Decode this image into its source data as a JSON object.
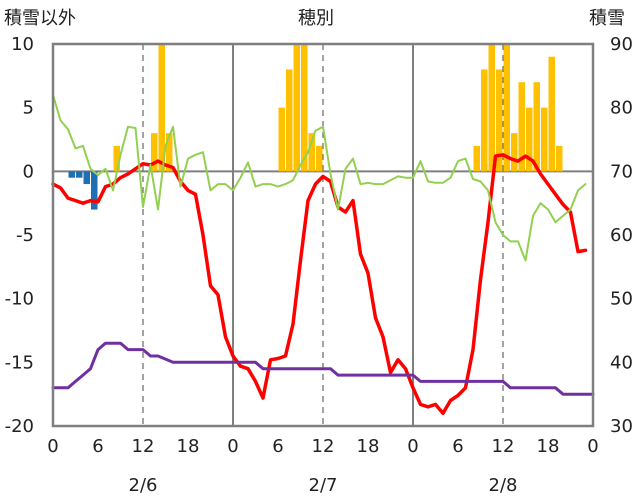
{
  "chart_data": {
    "type": "bar",
    "title": "",
    "left_axis": {
      "label": "積雪以外",
      "min": -20,
      "max": 10,
      "ticks": [
        "10",
        "5",
        "0",
        "-5",
        "-10",
        "-15",
        "-20"
      ]
    },
    "right_axis": {
      "label": "積雪",
      "min": 30,
      "max": 90,
      "ticks": [
        "90",
        "80",
        "70",
        "60",
        "50",
        "40",
        "30"
      ]
    },
    "top_label": "穂別",
    "x_tick_labels": [
      "0",
      "6",
      "12",
      "18",
      "0",
      "6",
      "12",
      "18",
      "0",
      "6",
      "12",
      "18",
      "0"
    ],
    "day_labels": [
      "2/6",
      "2/7",
      "2/8"
    ],
    "x_unit": "hours since 2/6 00:00",
    "x_range": [
      0,
      72
    ],
    "grid": "dashed vertical lines at 12h, solid lines at day boundaries",
    "series": [
      {
        "name": "",
        "kind": "bar",
        "axis": "left",
        "color": "#FFC000",
        "x": [
          9,
          14,
          15,
          16,
          31,
          32,
          33,
          34,
          35,
          36,
          57,
          58,
          59,
          60,
          61,
          62,
          63,
          64,
          65,
          66,
          67,
          68
        ],
        "y": [
          2,
          3,
          10,
          3,
          5,
          8,
          10,
          10,
          3,
          2,
          2,
          8,
          10,
          8,
          10,
          3,
          7,
          5,
          7,
          5,
          9,
          2
        ]
      },
      {
        "name": "",
        "kind": "bar",
        "axis": "left",
        "color": "#1F6FB2",
        "x": [
          3,
          4,
          5,
          6
        ],
        "y": [
          -0.5,
          -0.5,
          -1,
          -3
        ]
      },
      {
        "name": "",
        "kind": "line",
        "axis": "left",
        "color": "#FF0000",
        "width": 3.5,
        "x": [
          0,
          1,
          2,
          3,
          4,
          5,
          6,
          7,
          8,
          9,
          10,
          11,
          12,
          13,
          14,
          15,
          16,
          17,
          18,
          19,
          20,
          21,
          22,
          23,
          24,
          25,
          26,
          27,
          28,
          29,
          30,
          31,
          32,
          33,
          34,
          35,
          36,
          37,
          38,
          39,
          40,
          41,
          42,
          43,
          44,
          45,
          46,
          47,
          48,
          49,
          50,
          51,
          52,
          53,
          54,
          55,
          56,
          57,
          58,
          59,
          60,
          61,
          62,
          63,
          64,
          65,
          66,
          67,
          68,
          69,
          70,
          71
        ],
        "y": [
          -1,
          -1.3,
          -2.1,
          -2.3,
          -2.5,
          -2.3,
          -2.4,
          -1.2,
          -1.0,
          -0.5,
          -0.2,
          0.2,
          0.6,
          0.5,
          0.8,
          0.5,
          0.3,
          -0.8,
          -1.5,
          -1.8,
          -5,
          -9,
          -9.7,
          -13,
          -14.5,
          -15.3,
          -15.5,
          -16.5,
          -17.8,
          -14.8,
          -14.7,
          -14.5,
          -12,
          -7,
          -2.3,
          -1,
          -0.4,
          -0.8,
          -2.8,
          -3.2,
          -2.3,
          -6.5,
          -8,
          -11.5,
          -13,
          -15.8,
          -14.8,
          -15.5,
          -17,
          -18.3,
          -18.5,
          -18.3,
          -19,
          -18,
          -17.6,
          -17,
          -14,
          -8.5,
          -4,
          1.2,
          1.3,
          1.0,
          0.8,
          1.2,
          0.8,
          -0.2,
          -1,
          -1.8,
          -2.6,
          -3.2,
          -6.3,
          -6.2
        ]
      },
      {
        "name": "",
        "kind": "line",
        "axis": "left",
        "color": "#92D050",
        "width": 2,
        "x": [
          0,
          1,
          2,
          3,
          4,
          5,
          6,
          7,
          8,
          9,
          10,
          11,
          12,
          13,
          14,
          15,
          16,
          17,
          18,
          19,
          20,
          21,
          22,
          23,
          24,
          25,
          26,
          27,
          28,
          29,
          30,
          31,
          32,
          33,
          34,
          35,
          36,
          37,
          38,
          39,
          40,
          41,
          42,
          43,
          44,
          45,
          46,
          47,
          48,
          49,
          50,
          51,
          52,
          53,
          54,
          55,
          56,
          57,
          58,
          59,
          60,
          61,
          62,
          63,
          64,
          65,
          66,
          67,
          68,
          69,
          70,
          71
        ],
        "y": [
          6,
          4,
          3.3,
          1.8,
          2,
          0.2,
          -0.3,
          0.2,
          -1.5,
          1.3,
          3.5,
          3.4,
          -2.8,
          0.5,
          -3,
          2,
          3.5,
          -1.2,
          1,
          1.3,
          1.5,
          -1.5,
          -1,
          -1,
          -1.5,
          -0.5,
          0.7,
          -1.2,
          -1,
          -1,
          -1.2,
          -1,
          -0.7,
          0.5,
          1.5,
          3.2,
          3.5,
          -0.2,
          -3,
          0.2,
          1,
          -1,
          -0.9,
          -1,
          -1,
          -0.7,
          -0.4,
          -0.5,
          -0.5,
          0.8,
          -0.8,
          -0.9,
          -0.9,
          -0.5,
          0.8,
          1,
          -0.6,
          -0.8,
          -1.5,
          -4,
          -5,
          -5.5,
          -5.5,
          -7,
          -3.5,
          -2.5,
          -3,
          -4,
          -3.5,
          -3,
          -1.5,
          -1
        ]
      },
      {
        "name": "",
        "kind": "line",
        "axis": "right",
        "color": "#7030A0",
        "width": 3,
        "x": [
          0,
          2,
          3,
          4,
          5,
          6,
          7,
          9,
          10,
          12,
          13,
          14,
          16,
          17,
          27,
          28,
          37,
          38,
          48,
          49,
          60,
          61,
          67,
          68,
          72
        ],
        "y": [
          36,
          36,
          37,
          38,
          39,
          42,
          43,
          43,
          42,
          42,
          41,
          41,
          40,
          40,
          40,
          39,
          39,
          38,
          38,
          37,
          37,
          36,
          36,
          35,
          35
        ]
      }
    ]
  }
}
